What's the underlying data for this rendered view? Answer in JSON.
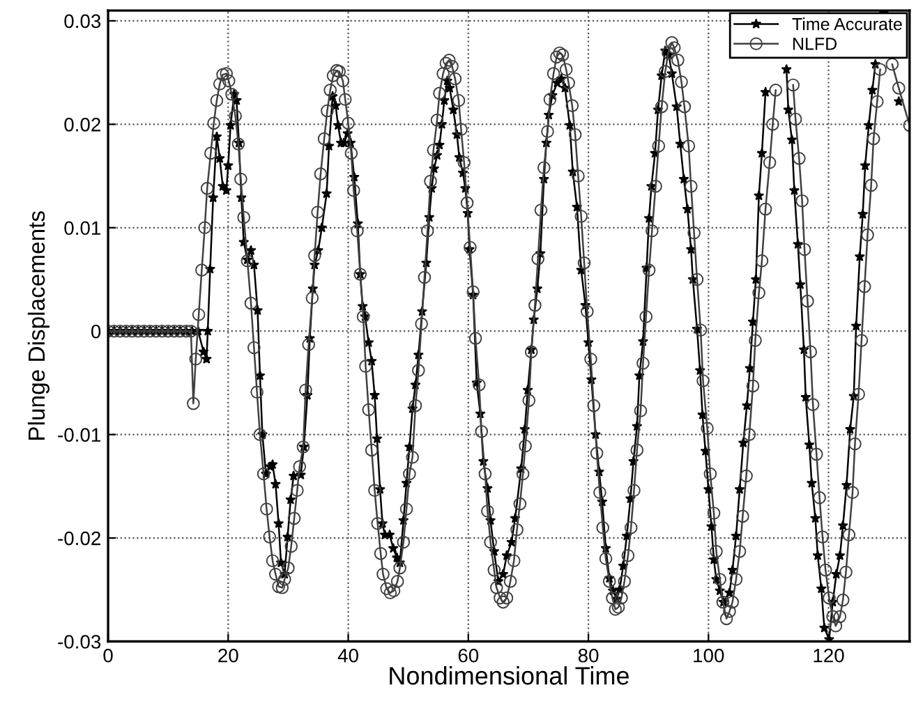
{
  "chart_data": {
    "type": "line",
    "xlabel": "Nondimensional Time",
    "ylabel": "Plunge Displacements",
    "xlim": [
      0,
      133.5
    ],
    "ylim": [
      -0.03,
      0.031
    ],
    "xticks": [
      0,
      20,
      40,
      60,
      80,
      100,
      120
    ],
    "yticks": [
      -0.03,
      -0.02,
      -0.01,
      0,
      0.01,
      0.02,
      0.03
    ],
    "grid": true,
    "legend": "top right",
    "line_style": "solid",
    "series": [
      {
        "name": "Time Accurate",
        "color": "#000000",
        "marker": "star",
        "x": [
          0,
          1,
          2,
          3,
          4,
          5,
          6,
          7,
          8,
          9,
          10,
          11,
          12,
          13,
          14,
          15,
          15.9,
          16.4,
          16.6,
          17.0,
          17.5,
          18.1,
          18.6,
          19.1,
          19.7,
          20.0,
          20.4,
          21.0,
          21.4,
          21.8,
          22.2,
          22.6,
          23.2,
          23.8,
          24.3,
          24.9,
          25.3,
          25.7,
          26.3,
          27.0,
          27.4,
          27.9,
          28.4,
          28.8,
          29.4,
          29.9,
          30.4,
          30.9,
          32.1,
          32.6,
          33.2,
          33.6,
          34.1,
          34.4,
          35.0,
          35.6,
          36.4,
          36.8,
          37.4,
          37.9,
          38.3,
          38.8,
          39.3,
          39.9,
          40.4,
          41.0,
          41.6,
          42.0,
          42.4,
          42.8,
          43.4,
          43.9,
          44.4,
          44.8,
          45.3,
          45.7,
          46.1,
          46.9,
          47.5,
          48.1,
          48.6,
          49.2,
          49.7,
          50.2,
          50.7,
          51.2,
          51.7,
          52.3,
          53.0,
          53.5,
          53.9,
          54.3,
          54.8,
          55.2,
          55.6,
          56.0,
          56.5,
          56.9,
          57.5,
          58.1,
          58.5,
          59.1,
          59.5,
          59.9,
          60.2,
          60.8,
          61.4,
          62.0,
          62.5,
          63.2,
          63.7,
          64.3,
          65.0,
          65.8,
          66.4,
          67.2,
          67.8,
          68.8,
          69.4,
          69.9,
          70.5,
          70.9,
          71.5,
          72.0,
          72.6,
          73.0,
          73.4,
          74.0,
          74.8,
          75.5,
          76.1,
          76.9,
          77.4,
          78.1,
          78.8,
          79.5,
          80.0,
          80.5,
          81.2,
          81.8,
          82.3,
          82.9,
          83.5,
          84.1,
          84.7,
          85.2,
          85.8,
          86.4,
          87.0,
          87.5,
          88.1,
          88.5,
          89.1,
          89.7,
          90.1,
          90.5,
          91.1,
          91.6,
          92.2,
          92.8,
          93.4,
          93.9,
          94.7,
          95.3,
          95.9,
          96.5,
          97.1,
          97.4,
          98.1,
          98.6,
          99.0,
          99.5,
          100.0,
          100.5,
          100.9,
          101.3,
          101.9,
          102.5,
          103.5,
          104.0,
          104.6,
          105.2,
          105.8,
          106.4,
          106.9,
          107.4,
          107.9,
          108.4,
          108.9,
          109.5,
          110.0,
          111.0,
          112.0,
          113.0,
          113.3,
          113.9,
          114.3,
          114.9,
          115.3,
          115.9,
          116.2,
          116.8,
          117.2,
          117.8,
          118.2,
          118.8,
          119.3,
          120.1,
          120.7,
          121.3,
          121.9,
          122.4,
          123.0,
          123.6,
          124.2,
          124.6,
          125.2,
          125.7,
          126.1,
          126.7,
          127.3,
          127.8,
          128.6,
          129.2,
          130.4,
          131.7
        ],
        "values": [
          0,
          0,
          0,
          0,
          0,
          0,
          0,
          0,
          0,
          0,
          0,
          0,
          0,
          0,
          0,
          0,
          -0.002,
          -0.0027,
          0,
          0.006,
          0.0129,
          0.0188,
          0.0167,
          0.014,
          0.0136,
          0.016,
          0.0199,
          0.0229,
          0.0223,
          0.0182,
          0.0129,
          0.0086,
          0.0069,
          0.0078,
          0.0064,
          0.002,
          -0.0043,
          -0.01,
          -0.0138,
          -0.0131,
          -0.0129,
          -0.0148,
          -0.0186,
          -0.0224,
          -0.0235,
          -0.0199,
          -0.0163,
          -0.014,
          -0.0139,
          -0.0112,
          -0.0062,
          -0.0007,
          0.0041,
          0.0064,
          0.0078,
          0.01,
          0.0133,
          0.0179,
          0.0227,
          0.0218,
          0.0199,
          0.0182,
          0.0182,
          0.0191,
          0.0182,
          0.0149,
          0.0104,
          0.0055,
          0.0024,
          0.0014,
          -0.0011,
          -0.0029,
          -0.0062,
          -0.0104,
          -0.0153,
          -0.0186,
          -0.0197,
          -0.0197,
          -0.021,
          -0.0219,
          -0.0224,
          -0.0183,
          -0.0147,
          -0.0112,
          -0.0075,
          -0.0052,
          -0.0023,
          0.0019,
          0.0066,
          0.011,
          0.0138,
          0.0157,
          0.017,
          0.018,
          0.02,
          0.0223,
          0.0242,
          0.0235,
          0.0214,
          0.019,
          0.0168,
          0.0153,
          0.0138,
          0.0114,
          0.0079,
          0.0035,
          -0.005,
          -0.008,
          -0.0126,
          -0.0152,
          -0.0183,
          -0.0213,
          -0.0242,
          -0.0235,
          -0.0217,
          -0.0204,
          -0.0181,
          -0.0133,
          -0.0095,
          -0.0057,
          -0.0018,
          0.0011,
          0.0041,
          0.0075,
          0.0147,
          0.0182,
          0.0209,
          0.0228,
          0.024,
          0.0244,
          0.0235,
          0.0199,
          0.0154,
          0.012,
          0.0059,
          0.0025,
          -0.0011,
          -0.0047,
          -0.01,
          -0.0136,
          -0.0165,
          -0.021,
          -0.0239,
          -0.0251,
          -0.0259,
          -0.025,
          -0.0227,
          -0.0198,
          -0.0162,
          -0.0126,
          -0.0092,
          -0.0043,
          -0.001,
          0.0061,
          0.0109,
          0.014,
          0.0172,
          0.0214,
          0.0247,
          0.0271,
          0.0267,
          0.0249,
          0.0217,
          0.0181,
          0.0147,
          0.0118,
          0.0079,
          0.005,
          0.0002,
          -0.0038,
          -0.0081,
          -0.0116,
          -0.0153,
          -0.0189,
          -0.0221,
          -0.024,
          -0.0251,
          -0.0262,
          -0.0253,
          -0.0231,
          -0.0198,
          -0.0153,
          -0.0108,
          -0.0072,
          -0.0036,
          0.0009,
          0.005,
          0.0131,
          0.0172,
          0.0231,
          null,
          null,
          null,
          0.0253,
          0.0214,
          0.0185,
          0.0136,
          0.0084,
          0.0045,
          -0.0018,
          -0.0064,
          -0.011,
          -0.0147,
          -0.0181,
          -0.0217,
          -0.0249,
          -0.0287,
          -0.0298,
          -0.0262,
          -0.0235,
          -0.0217,
          -0.0188,
          -0.0149,
          -0.0095,
          -0.0063,
          0.0005,
          0.0072,
          0.0113,
          0.016,
          0.0199,
          0.0233,
          0.0258,
          null,
          0.0308,
          null,
          0.0222
        ]
      },
      {
        "name": "NLFD",
        "color": "#404040",
        "marker": "circle",
        "x": [
          0,
          1,
          2,
          3,
          4,
          5,
          6,
          7,
          8,
          9,
          10,
          11,
          12,
          13,
          13.8,
          14.2,
          14.6,
          15.1,
          15.6,
          16.1,
          16.5,
          17.1,
          17.6,
          18.1,
          18.6,
          19.1,
          19.7,
          20.1,
          20.6,
          21.2,
          21.7,
          22.1,
          22.6,
          23.2,
          23.8,
          24.3,
          24.8,
          25.3,
          25.9,
          26.4,
          26.9,
          27.4,
          27.9,
          28.4,
          29.0,
          29.4,
          30.0,
          30.5,
          31.0,
          31.5,
          31.9,
          32.5,
          32.9,
          33.4,
          34.0,
          34.4,
          34.9,
          35.4,
          36.0,
          36.5,
          37.0,
          37.5,
          38.1,
          38.5,
          39.1,
          39.5,
          40.0,
          40.5,
          40.9,
          41.5,
          42.0,
          42.5,
          42.9,
          43.4,
          43.9,
          44.4,
          44.9,
          45.4,
          45.8,
          46.4,
          47.0,
          47.6,
          48.2,
          48.6,
          49.2,
          49.7,
          50.2,
          50.7,
          51.2,
          51.7,
          52.2,
          52.7,
          53.2,
          53.7,
          54.2,
          54.8,
          55.2,
          55.8,
          56.3,
          56.8,
          57.3,
          57.8,
          58.4,
          58.8,
          59.3,
          59.8,
          60.3,
          60.8,
          61.2,
          61.8,
          62.2,
          62.8,
          63.2,
          63.7,
          64.3,
          64.7,
          65.3,
          65.8,
          66.4,
          67.0,
          67.6,
          68.1,
          68.6,
          69.1,
          69.5,
          70.1,
          70.5,
          71.1,
          71.6,
          72.1,
          72.6,
          73.2,
          73.6,
          74.2,
          74.7,
          75.2,
          75.7,
          76.3,
          76.7,
          77.3,
          77.8,
          78.3,
          78.8,
          79.3,
          79.8,
          80.4,
          80.9,
          81.4,
          81.9,
          82.4,
          82.9,
          83.5,
          84.0,
          84.5,
          85.0,
          85.5,
          86.0,
          86.6,
          87.1,
          87.6,
          88.1,
          88.7,
          89.1,
          89.6,
          90.1,
          90.6,
          91.2,
          91.7,
          92.2,
          92.8,
          93.3,
          93.9,
          94.3,
          94.9,
          95.5,
          96.0,
          96.7,
          97.1,
          97.6,
          98.1,
          98.7,
          99.1,
          99.8,
          100.3,
          100.9,
          101.3,
          101.9,
          102.4,
          103.0,
          103.5,
          104.0,
          104.6,
          105.2,
          105.7,
          106.3,
          106.8,
          107.4,
          107.8,
          108.4,
          108.9,
          109.5,
          110.2,
          110.7,
          111.2,
          112.0,
          113.0,
          114.1,
          114.5,
          115.1,
          115.6,
          116.0,
          116.5,
          117.0,
          117.4,
          118.0,
          118.5,
          119.0,
          119.5,
          120.1,
          120.7,
          121.2,
          121.9,
          122.4,
          122.9,
          123.4,
          124.0,
          124.4,
          125.0,
          125.5,
          126.0,
          126.5,
          127.1,
          127.5,
          128.1,
          128.6,
          129.2,
          130.0,
          130.6,
          131.7,
          133.5
        ],
        "values": [
          0,
          0,
          0,
          0,
          0,
          0,
          0,
          0,
          0,
          0,
          0,
          0,
          0,
          0,
          0,
          -0.007,
          -0.0027,
          0.0016,
          0.0059,
          0.01,
          0.0138,
          0.0172,
          0.0201,
          0.0223,
          0.0239,
          0.0248,
          0.0249,
          0.0242,
          0.0229,
          0.0208,
          0.0181,
          0.0147,
          0.011,
          0.0068,
          0.0027,
          -0.0016,
          -0.0059,
          -0.01,
          -0.0138,
          -0.0172,
          -0.0199,
          -0.0222,
          -0.0235,
          -0.0247,
          -0.0248,
          -0.024,
          -0.0229,
          -0.0208,
          -0.0181,
          -0.0154,
          -0.0131,
          -0.0112,
          -0.0057,
          -0.0013,
          0.0032,
          0.0073,
          0.0115,
          0.0152,
          0.0186,
          0.0213,
          0.0233,
          0.0247,
          0.0252,
          0.0251,
          0.0242,
          0.0224,
          0.0201,
          0.0172,
          0.0136,
          0.0097,
          0.0055,
          0.0014,
          -0.0034,
          -0.0076,
          -0.0115,
          -0.0154,
          -0.0186,
          -0.0215,
          -0.0235,
          -0.0249,
          -0.0253,
          -0.0251,
          -0.0242,
          -0.0229,
          -0.0204,
          -0.0172,
          -0.0138,
          -0.0122,
          -0.0072,
          -0.0038,
          0.0007,
          0.0052,
          0.0097,
          0.0145,
          0.0175,
          0.0204,
          0.023,
          0.0249,
          0.0259,
          0.0262,
          0.0256,
          0.0244,
          0.0223,
          0.0195,
          0.0163,
          0.0124,
          0.0081,
          0.0038,
          -0.0007,
          -0.0052,
          -0.0097,
          -0.0138,
          -0.0174,
          -0.0204,
          -0.0231,
          -0.0248,
          -0.0258,
          -0.0262,
          -0.0258,
          -0.0242,
          -0.0222,
          -0.0192,
          -0.0167,
          -0.0138,
          -0.0111,
          -0.0067,
          -0.002,
          0.0025,
          0.007,
          0.0117,
          0.0158,
          0.0193,
          0.0224,
          0.0249,
          0.0265,
          0.0269,
          0.0267,
          0.0253,
          0.024,
          0.0218,
          0.019,
          0.015,
          0.0111,
          0.0066,
          0.0019,
          -0.0027,
          -0.0072,
          -0.0118,
          -0.0156,
          -0.019,
          -0.022,
          -0.0242,
          -0.0258,
          -0.0269,
          -0.0267,
          -0.0258,
          -0.0242,
          -0.0217,
          -0.019,
          -0.0154,
          -0.0115,
          -0.0077,
          -0.0031,
          0.0014,
          0.0059,
          0.0097,
          0.014,
          0.0179,
          0.0217,
          0.0251,
          0.0269,
          0.0279,
          0.0274,
          0.0262,
          0.0241,
          0.0217,
          0.0179,
          0.014,
          0.0095,
          0.005,
          0.0001,
          -0.0048,
          -0.0094,
          -0.0138,
          -0.0176,
          -0.0213,
          -0.024,
          -0.0262,
          -0.0278,
          -0.0271,
          -0.0262,
          -0.024,
          -0.0213,
          -0.0179,
          -0.014,
          -0.01,
          -0.0053,
          -0.0009,
          0.0037,
          0.0068,
          0.0118,
          0.0163,
          0.02,
          0.0233,
          null,
          null,
          0.0238,
          0.0205,
          0.0167,
          0.0126,
          0.0079,
          0.0029,
          -0.002,
          -0.0071,
          -0.0119,
          -0.0161,
          -0.0199,
          -0.0231,
          -0.0258,
          -0.0276,
          -0.0285,
          -0.0276,
          -0.026,
          -0.0233,
          -0.0197,
          -0.0156,
          -0.0109,
          -0.0061,
          -0.0009,
          0.0043,
          0.0093,
          0.0141,
          0.0186,
          0.0222,
          0.0253,
          null,
          null,
          0.0258,
          0.0235,
          0.0199
        ]
      }
    ]
  }
}
